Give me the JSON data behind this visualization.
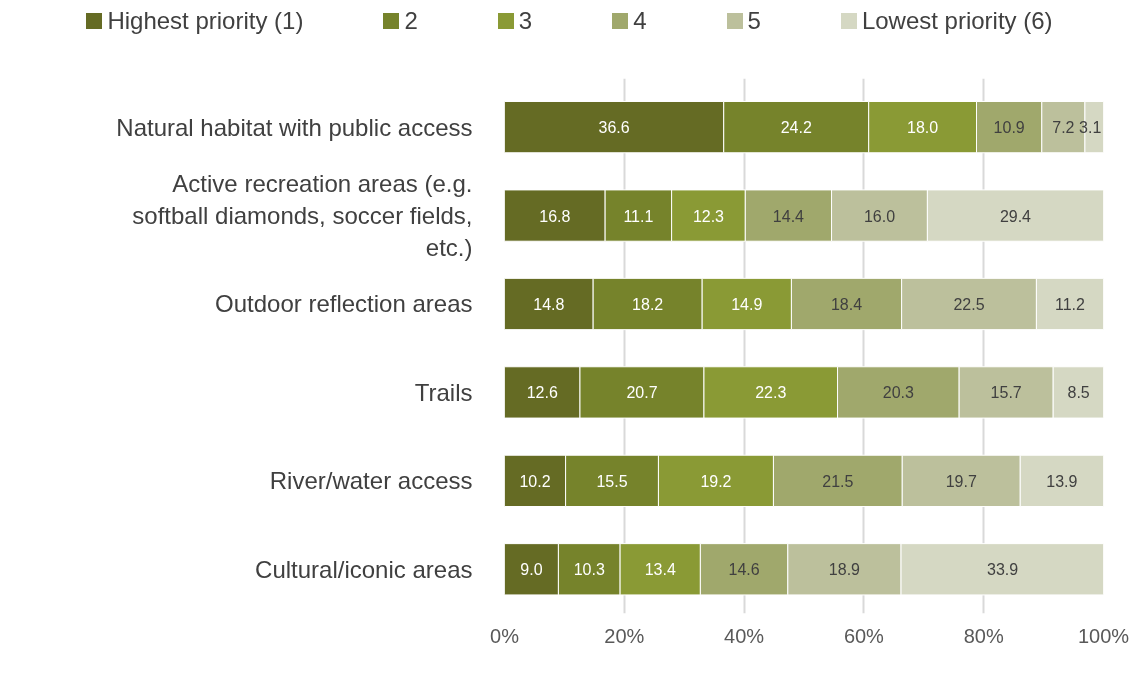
{
  "chart_data": {
    "type": "bar",
    "orientation": "horizontal",
    "stacked": true,
    "data_labels": true,
    "grid": "x",
    "legend": "top",
    "categories": [
      "Natural habitat with public access",
      "Active recreation areas (e.g. softball diamonds, soccer fields, etc.)",
      "Outdoor reflection areas",
      "Trails",
      "River/water access",
      "Cultural/iconic areas"
    ],
    "xlim": [
      0,
      100
    ],
    "xticks": [
      {
        "value": 0,
        "label": "0%"
      },
      {
        "value": 20,
        "label": "20%"
      },
      {
        "value": 40,
        "label": "40%"
      },
      {
        "value": 60,
        "label": "60%"
      },
      {
        "value": 80,
        "label": "80%"
      },
      {
        "value": 100,
        "label": "100%"
      }
    ],
    "series": [
      {
        "name": "Highest priority (1)",
        "color": "#656b24",
        "values": [
          36.6,
          16.8,
          14.8,
          12.6,
          10.2,
          9.0
        ],
        "value_labels": [
          "36.6",
          "16.8",
          "14.8",
          "12.6",
          "10.2",
          "9.0"
        ]
      },
      {
        "name": "2",
        "color": "#76832b",
        "values": [
          24.2,
          11.1,
          18.2,
          20.7,
          15.5,
          10.3
        ],
        "value_labels": [
          "24.2",
          "11.1",
          "18.2",
          "20.7",
          "15.5",
          "10.3"
        ]
      },
      {
        "name": "3",
        "color": "#8a9a35",
        "values": [
          18.0,
          12.3,
          14.9,
          22.3,
          19.2,
          13.4
        ],
        "value_labels": [
          "18.0",
          "12.3",
          "14.9",
          "22.3",
          "19.2",
          "13.4"
        ]
      },
      {
        "name": "4",
        "color": "#a0a86c",
        "values": [
          10.9,
          14.4,
          18.4,
          20.3,
          21.5,
          14.6
        ],
        "value_labels": [
          "10.9",
          "14.4",
          "18.4",
          "20.3",
          "21.5",
          "14.6"
        ]
      },
      {
        "name": "5",
        "color": "#bcc09c",
        "values": [
          7.2,
          16.0,
          22.5,
          15.7,
          19.7,
          18.9
        ],
        "value_labels": [
          "7.2",
          "16.0",
          "22.5",
          "15.7",
          "19.7",
          "18.9"
        ]
      },
      {
        "name": "Lowest priority (6)",
        "color": "#d5d8c3",
        "values": [
          3.1,
          29.4,
          11.2,
          8.5,
          13.9,
          33.9
        ],
        "value_labels": [
          "3.1",
          "29.4",
          "11.2",
          "8.5",
          "13.9",
          "33.9"
        ]
      }
    ]
  }
}
